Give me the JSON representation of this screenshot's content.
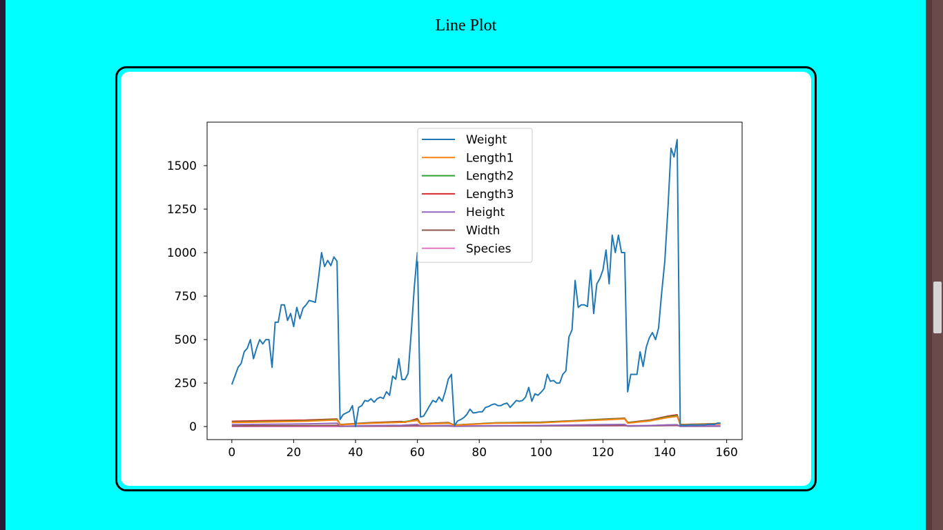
{
  "page": {
    "title": "Line Plot"
  },
  "chart_data": {
    "type": "line",
    "title": "",
    "xlabel": "",
    "ylabel": "",
    "xlim": [
      -8,
      165
    ],
    "ylim": [
      -75,
      1750
    ],
    "xticks": [
      0,
      20,
      40,
      60,
      80,
      100,
      120,
      140,
      160
    ],
    "yticks": [
      0,
      250,
      500,
      750,
      1000,
      1250,
      1500
    ],
    "grid": false,
    "legend_position": "upper-center",
    "series": [
      {
        "name": "Weight",
        "color": "#1f77b4",
        "points": [
          [
            0,
            242
          ],
          [
            1,
            290
          ],
          [
            2,
            340
          ],
          [
            3,
            363
          ],
          [
            4,
            430
          ],
          [
            5,
            450
          ],
          [
            6,
            500
          ],
          [
            7,
            390
          ],
          [
            8,
            450
          ],
          [
            9,
            500
          ],
          [
            10,
            475
          ],
          [
            11,
            500
          ],
          [
            12,
            500
          ],
          [
            13,
            340
          ],
          [
            14,
            600
          ],
          [
            15,
            600
          ],
          [
            16,
            700
          ],
          [
            17,
            700
          ],
          [
            18,
            610
          ],
          [
            19,
            650
          ],
          [
            20,
            575
          ],
          [
            21,
            685
          ],
          [
            22,
            620
          ],
          [
            23,
            680
          ],
          [
            24,
            700
          ],
          [
            25,
            725
          ],
          [
            26,
            720
          ],
          [
            27,
            714
          ],
          [
            28,
            850
          ],
          [
            29,
            1000
          ],
          [
            30,
            920
          ],
          [
            31,
            955
          ],
          [
            32,
            925
          ],
          [
            33,
            975
          ],
          [
            34,
            950
          ],
          [
            35,
            40
          ],
          [
            36,
            69
          ],
          [
            37,
            78
          ],
          [
            38,
            87
          ],
          [
            39,
            120
          ],
          [
            40,
            0
          ],
          [
            41,
            110
          ],
          [
            42,
            120
          ],
          [
            43,
            150
          ],
          [
            44,
            145
          ],
          [
            45,
            160
          ],
          [
            46,
            140
          ],
          [
            47,
            160
          ],
          [
            48,
            169
          ],
          [
            49,
            161
          ],
          [
            50,
            200
          ],
          [
            51,
            180
          ],
          [
            52,
            290
          ],
          [
            53,
            272
          ],
          [
            54,
            390
          ],
          [
            55,
            270
          ],
          [
            56,
            270
          ],
          [
            57,
            306
          ],
          [
            58,
            540
          ],
          [
            59,
            800
          ],
          [
            60,
            1000
          ],
          [
            61,
            55
          ],
          [
            62,
            60
          ],
          [
            63,
            90
          ],
          [
            64,
            120
          ],
          [
            65,
            150
          ],
          [
            66,
            140
          ],
          [
            67,
            170
          ],
          [
            68,
            145
          ],
          [
            69,
            200
          ],
          [
            70,
            273
          ],
          [
            71,
            300
          ],
          [
            72,
            6
          ],
          [
            73,
            32
          ],
          [
            74,
            40
          ],
          [
            75,
            51
          ],
          [
            76,
            70
          ],
          [
            77,
            100
          ],
          [
            78,
            78
          ],
          [
            79,
            80
          ],
          [
            80,
            85
          ],
          [
            81,
            85
          ],
          [
            82,
            110
          ],
          [
            83,
            115
          ],
          [
            84,
            125
          ],
          [
            85,
            130
          ],
          [
            86,
            120
          ],
          [
            87,
            120
          ],
          [
            88,
            130
          ],
          [
            89,
            135
          ],
          [
            90,
            110
          ],
          [
            91,
            130
          ],
          [
            92,
            150
          ],
          [
            93,
            145
          ],
          [
            94,
            150
          ],
          [
            95,
            170
          ],
          [
            96,
            225
          ],
          [
            97,
            145
          ],
          [
            98,
            188
          ],
          [
            99,
            180
          ],
          [
            100,
            197
          ],
          [
            101,
            218
          ],
          [
            102,
            300
          ],
          [
            103,
            260
          ],
          [
            104,
            265
          ],
          [
            105,
            250
          ],
          [
            106,
            250
          ],
          [
            107,
            300
          ],
          [
            108,
            320
          ],
          [
            109,
            514
          ],
          [
            110,
            556
          ],
          [
            111,
            840
          ],
          [
            112,
            685
          ],
          [
            113,
            700
          ],
          [
            114,
            700
          ],
          [
            115,
            690
          ],
          [
            116,
            900
          ],
          [
            117,
            650
          ],
          [
            118,
            820
          ],
          [
            119,
            850
          ],
          [
            120,
            900
          ],
          [
            121,
            1015
          ],
          [
            122,
            820
          ],
          [
            123,
            1100
          ],
          [
            124,
            1000
          ],
          [
            125,
            1100
          ],
          [
            126,
            1000
          ],
          [
            127,
            1000
          ],
          [
            128,
            200
          ],
          [
            129,
            300
          ],
          [
            130,
            300
          ],
          [
            131,
            300
          ],
          [
            132,
            430
          ],
          [
            133,
            345
          ],
          [
            134,
            456
          ],
          [
            135,
            510
          ],
          [
            136,
            540
          ],
          [
            137,
            500
          ],
          [
            138,
            567
          ],
          [
            139,
            770
          ],
          [
            140,
            950
          ],
          [
            141,
            1250
          ],
          [
            142,
            1600
          ],
          [
            143,
            1550
          ],
          [
            144,
            1650
          ],
          [
            145,
            6.7
          ],
          [
            146,
            7.5
          ],
          [
            147,
            7
          ],
          [
            148,
            9.7
          ],
          [
            149,
            9.8
          ],
          [
            150,
            8.7
          ],
          [
            151,
            10
          ],
          [
            152,
            9.9
          ],
          [
            153,
            9.8
          ],
          [
            154,
            12.2
          ],
          [
            155,
            13.4
          ],
          [
            156,
            12.2
          ],
          [
            157,
            19.7
          ],
          [
            158,
            19.9
          ]
        ]
      },
      {
        "name": "Length1",
        "color": "#ff7f0e",
        "points": [
          [
            0,
            23.2
          ],
          [
            12,
            26.5
          ],
          [
            24,
            30.5
          ],
          [
            34,
            38
          ],
          [
            35,
            9.8
          ],
          [
            45,
            19
          ],
          [
            55,
            24
          ],
          [
            60,
            35
          ],
          [
            61,
            13.5
          ],
          [
            70,
            19.5
          ],
          [
            72,
            7.5
          ],
          [
            85,
            19
          ],
          [
            100,
            22
          ],
          [
            110,
            30
          ],
          [
            120,
            38
          ],
          [
            127,
            44
          ],
          [
            128,
            20
          ],
          [
            135,
            32
          ],
          [
            141,
            52
          ],
          [
            144,
            59
          ],
          [
            145,
            9.8
          ],
          [
            158,
            15
          ]
        ]
      },
      {
        "name": "Length2",
        "color": "#2ca02c",
        "points": [
          [
            0,
            25.4
          ],
          [
            12,
            29
          ],
          [
            24,
            33
          ],
          [
            34,
            41
          ],
          [
            35,
            10.7
          ],
          [
            45,
            20.7
          ],
          [
            55,
            26
          ],
          [
            60,
            38
          ],
          [
            61,
            14.7
          ],
          [
            70,
            21
          ],
          [
            72,
            8.4
          ],
          [
            85,
            20.7
          ],
          [
            100,
            24
          ],
          [
            110,
            32
          ],
          [
            120,
            41
          ],
          [
            127,
            46
          ],
          [
            128,
            22
          ],
          [
            135,
            34.5
          ],
          [
            141,
            56
          ],
          [
            144,
            63
          ],
          [
            145,
            10.6
          ],
          [
            158,
            16.2
          ]
        ]
      },
      {
        "name": "Length3",
        "color": "#d62728",
        "points": [
          [
            0,
            30
          ],
          [
            12,
            34
          ],
          [
            24,
            37
          ],
          [
            34,
            43.5
          ],
          [
            35,
            11.8
          ],
          [
            45,
            22.5
          ],
          [
            55,
            29
          ],
          [
            56,
            24
          ],
          [
            60,
            45.5
          ],
          [
            61,
            16.2
          ],
          [
            70,
            23
          ],
          [
            72,
            8.8
          ],
          [
            85,
            21.5
          ],
          [
            100,
            25.5
          ],
          [
            110,
            33.5
          ],
          [
            120,
            42.5
          ],
          [
            127,
            48
          ],
          [
            128,
            23.5
          ],
          [
            135,
            37
          ],
          [
            141,
            59.7
          ],
          [
            144,
            68
          ],
          [
            145,
            11.8
          ],
          [
            158,
            17.2
          ]
        ]
      },
      {
        "name": "Height",
        "color": "#9467bd",
        "points": [
          [
            0,
            11.5
          ],
          [
            12,
            13
          ],
          [
            24,
            15.5
          ],
          [
            34,
            18.9
          ],
          [
            35,
            2
          ],
          [
            45,
            6
          ],
          [
            55,
            7.5
          ],
          [
            60,
            12.4
          ],
          [
            61,
            4
          ],
          [
            70,
            6.2
          ],
          [
            72,
            2
          ],
          [
            85,
            5.3
          ],
          [
            100,
            6.5
          ],
          [
            110,
            8.8
          ],
          [
            120,
            11.3
          ],
          [
            127,
            12.4
          ],
          [
            128,
            3.6
          ],
          [
            135,
            6
          ],
          [
            141,
            10
          ],
          [
            144,
            10.7
          ],
          [
            145,
            1.7
          ],
          [
            158,
            2.9
          ]
        ]
      },
      {
        "name": "Width",
        "color": "#8c564b",
        "points": [
          [
            0,
            4
          ],
          [
            12,
            4.6
          ],
          [
            24,
            5.3
          ],
          [
            34,
            6.7
          ],
          [
            35,
            1.2
          ],
          [
            45,
            3.3
          ],
          [
            55,
            4
          ],
          [
            60,
            6.4
          ],
          [
            61,
            2.3
          ],
          [
            70,
            3.5
          ],
          [
            72,
            1.2
          ],
          [
            85,
            3.3
          ],
          [
            100,
            3.9
          ],
          [
            110,
            5
          ],
          [
            120,
            6.5
          ],
          [
            127,
            7.5
          ],
          [
            128,
            2.4
          ],
          [
            135,
            3.8
          ],
          [
            141,
            6.5
          ],
          [
            144,
            7.5
          ],
          [
            145,
            1.1
          ],
          [
            158,
            2
          ]
        ]
      },
      {
        "name": "Species",
        "color": "#e377c2",
        "points": [
          [
            0,
            0
          ],
          [
            34,
            0
          ],
          [
            35,
            1
          ],
          [
            54,
            1
          ],
          [
            55,
            2
          ],
          [
            60,
            2
          ],
          [
            61,
            3
          ],
          [
            71,
            3
          ],
          [
            72,
            4
          ],
          [
            127,
            4
          ],
          [
            128,
            5
          ],
          [
            144,
            5
          ],
          [
            145,
            6
          ],
          [
            158,
            6
          ]
        ]
      }
    ]
  }
}
